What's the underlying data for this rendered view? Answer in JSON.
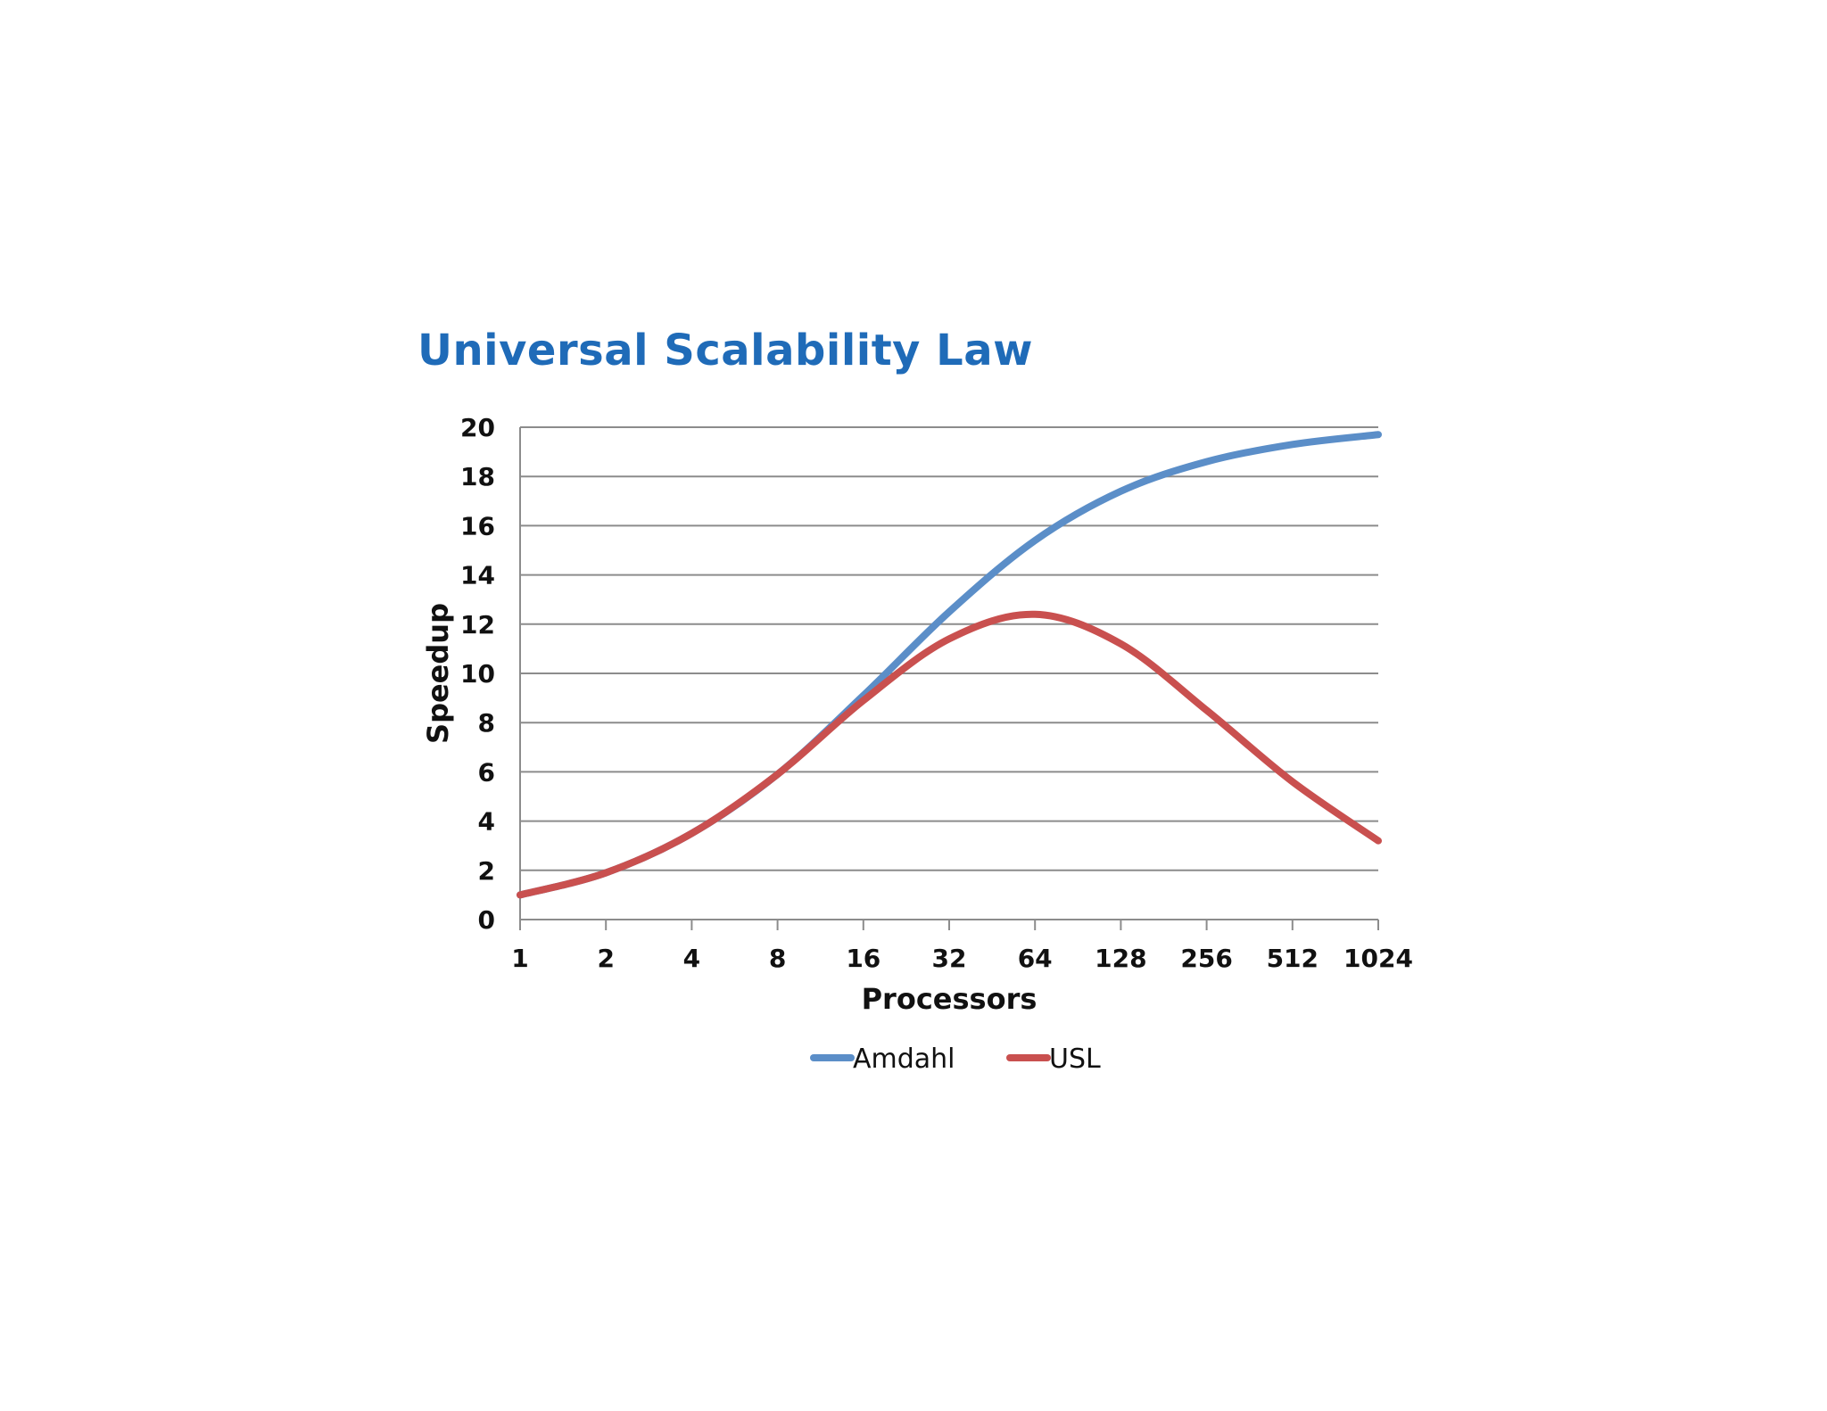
{
  "chart_data": {
    "type": "line",
    "title": "Universal Scalability Law",
    "xlabel": "Processors",
    "ylabel": "Speedup",
    "x_scale": "log2",
    "categories": [
      "1",
      "2",
      "4",
      "8",
      "16",
      "32",
      "64",
      "128",
      "256",
      "512",
      "1024"
    ],
    "y_ticks": [
      "0",
      "2",
      "4",
      "6",
      "8",
      "10",
      "12",
      "14",
      "16",
      "18",
      "20"
    ],
    "ylim": [
      0,
      20
    ],
    "grid": "horizontal",
    "legend_position": "bottom",
    "series": [
      {
        "name": "Amdahl",
        "color": "#5b8ec8",
        "x": [
          1,
          2,
          4,
          8,
          16,
          32,
          64,
          128,
          256,
          512,
          1024
        ],
        "values": [
          1.0,
          1.9,
          3.5,
          5.9,
          9.1,
          12.5,
          15.4,
          17.4,
          18.6,
          19.3,
          19.7
        ]
      },
      {
        "name": "USL",
        "color": "#c9504f",
        "x": [
          1,
          2,
          4,
          8,
          16,
          32,
          64,
          128,
          256,
          512,
          1024
        ],
        "values": [
          1.0,
          1.9,
          3.5,
          5.9,
          8.9,
          11.4,
          12.4,
          11.2,
          8.5,
          5.6,
          3.2
        ]
      }
    ],
    "title_color": "#1f6bb8"
  }
}
